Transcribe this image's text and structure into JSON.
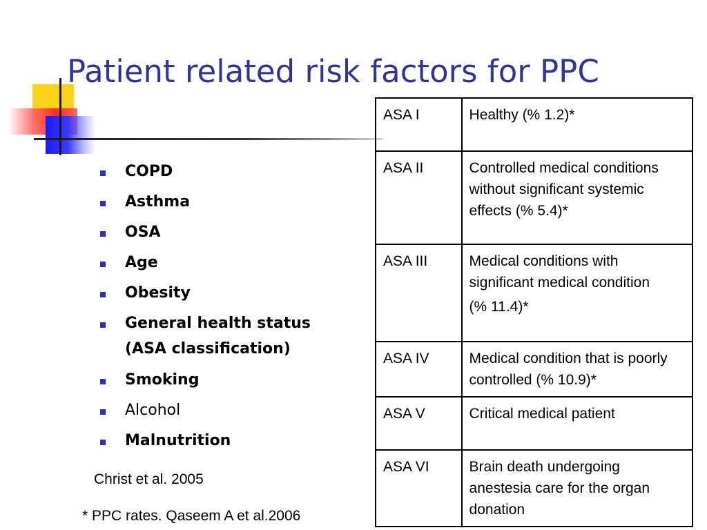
{
  "title": "Patient related risk factors for PPC",
  "risk_factors": [
    {
      "label": "COPD",
      "bold": true
    },
    {
      "label": "Asthma",
      "bold": true
    },
    {
      "label": "OSA",
      "bold": true
    },
    {
      "label": "Age",
      "bold": true
    },
    {
      "label": "Obesity",
      "bold": true
    },
    {
      "label": "General health status (ASA classification)",
      "bold": true
    },
    {
      "label": "Smoking",
      "bold": true
    },
    {
      "label": "Alcohol",
      "bold": false
    },
    {
      "label": "Malnutrition",
      "bold": true
    }
  ],
  "citations": {
    "christ": "Christ et al. 2005",
    "ppc_rates": "* PPC rates. Qaseem A et al.2006"
  },
  "asa_table": {
    "rows": [
      {
        "class": "ASA I",
        "description": "Healthy (% 1.2)*"
      },
      {
        "class": "ASA II",
        "description": "Controlled medical conditions without significant systemic effects (% 5.4)*"
      },
      {
        "class": "ASA III",
        "description": "Medical conditions with significant medical condition",
        "description_extra": "(% 11.4)*"
      },
      {
        "class": "ASA IV",
        "description": "Medical condition that is poorly controlled (% 10.9)*"
      },
      {
        "class": "ASA V",
        "description": "Critical medical patient"
      },
      {
        "class": "ASA VI",
        "description": "Brain death undergoing anestesia care for the organ donation"
      }
    ]
  },
  "colors": {
    "title": "#333399",
    "bullet": "#2b2bd0",
    "deco_yellow": "#ffd21a",
    "deco_red": "#ff2020",
    "deco_blue": "#1a1aff"
  },
  "icons": {
    "bullet": "square-bullet-icon"
  }
}
